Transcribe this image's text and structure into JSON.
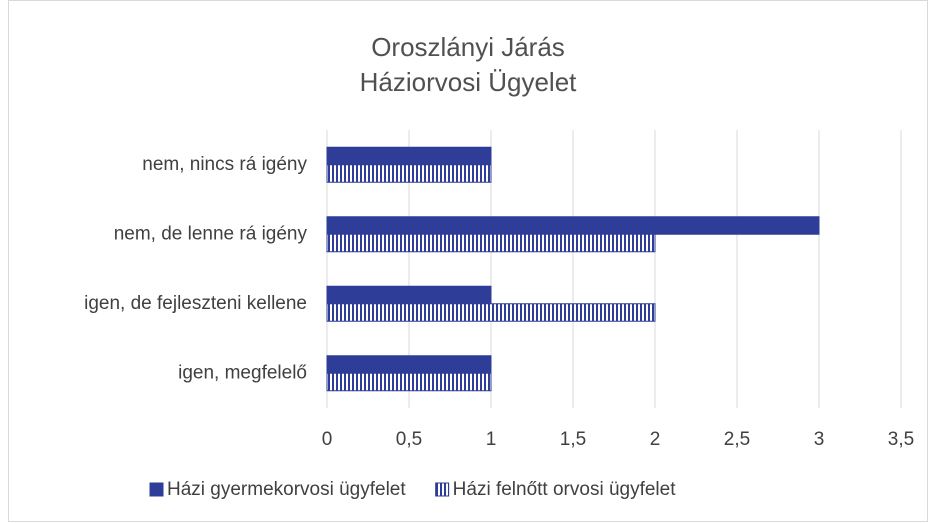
{
  "chart_data": {
    "type": "hbar",
    "title": [
      "Oroszlányi Járás",
      "Háziorvosi Ügyelet"
    ],
    "categories": [
      "nem, nincs rá igény",
      "nem, de lenne rá igény",
      "igen, de fejleszteni kellene",
      "igen, megfelelő"
    ],
    "series": [
      {
        "name": "Házi gyermekorvosi ügyfelet",
        "color": "#2e3d98",
        "pattern": "solid",
        "values": [
          1,
          3,
          1,
          1
        ]
      },
      {
        "name": "Házi felnőtt orvosi ügyfelet",
        "color": "#2e3d98",
        "pattern": "vertical-stripes",
        "values": [
          1,
          2,
          2,
          1
        ]
      }
    ],
    "xlim": [
      0,
      3.5
    ],
    "xticks": [
      0,
      {
        "value": 0.5,
        "label": "0,5"
      },
      1,
      {
        "value": 1.5,
        "label": "1,5"
      },
      2,
      {
        "value": 2.5,
        "label": "2,5"
      },
      3,
      {
        "value": 3.5,
        "label": "3,5"
      }
    ],
    "grid": true,
    "legend": "bottom"
  }
}
